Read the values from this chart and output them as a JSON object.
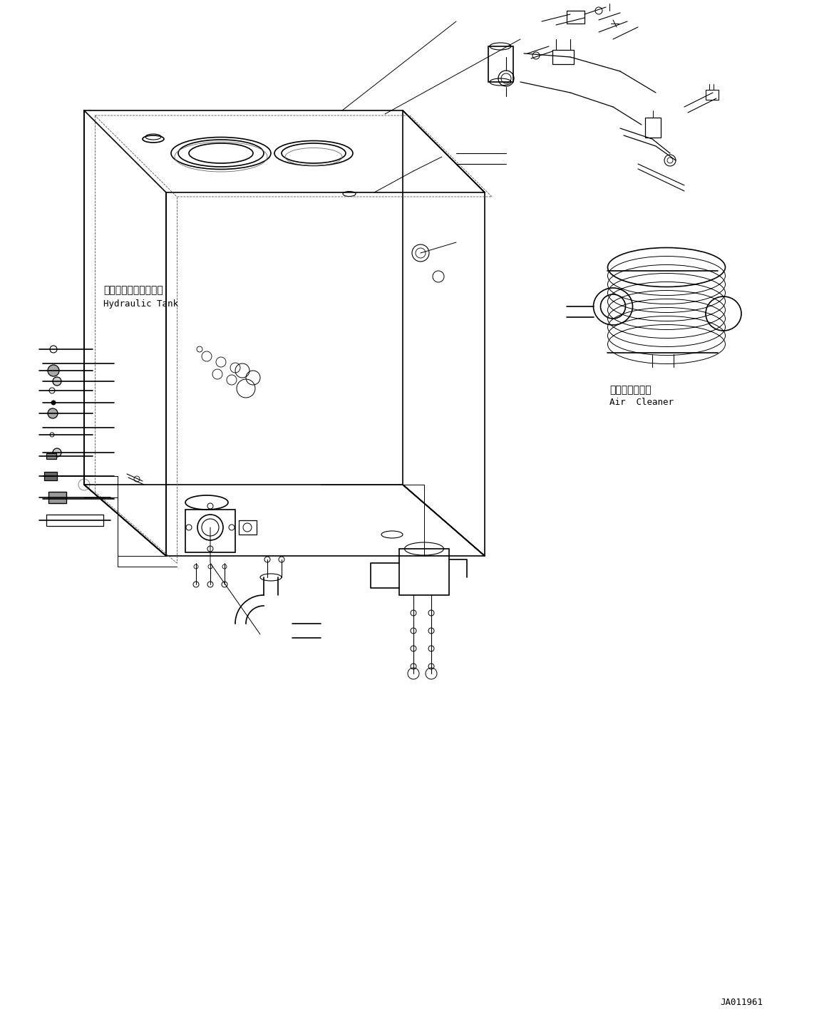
{
  "bg_color": "#ffffff",
  "line_color": "#000000",
  "fig_width": 11.63,
  "fig_height": 14.41,
  "title_code": "JA011961",
  "label_hydraulic_tank_jp": "ハイドロリックタンク",
  "label_hydraulic_tank_en": "Hydraulic Tank",
  "label_air_cleaner_jp": "エアークリーナ",
  "label_air_cleaner_en": "Air  Cleaner"
}
